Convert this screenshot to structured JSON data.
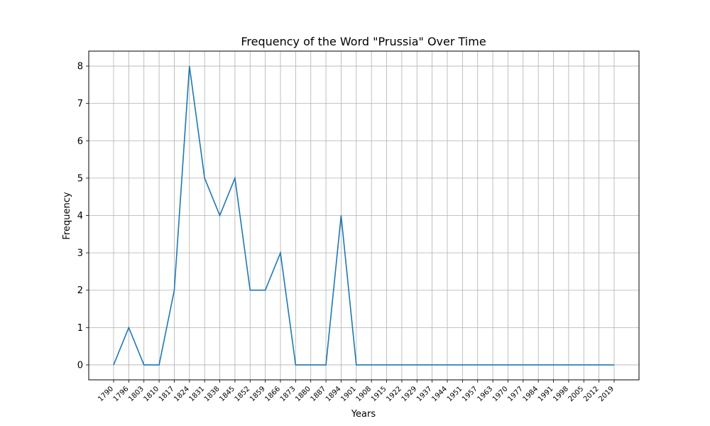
{
  "chart_data": {
    "type": "line",
    "title": "Frequency of the Word \"Prussia\" Over Time",
    "xlabel": "Years",
    "ylabel": "Frequency",
    "x": [
      "1790",
      "1796",
      "1803",
      "1810",
      "1817",
      "1824",
      "1831",
      "1838",
      "1845",
      "1852",
      "1859",
      "1866",
      "1873",
      "1880",
      "1887",
      "1894",
      "1901",
      "1908",
      "1915",
      "1922",
      "1929",
      "1937",
      "1944",
      "1951",
      "1957",
      "1963",
      "1970",
      "1977",
      "1984",
      "1991",
      "1998",
      "2005",
      "2012",
      "2019"
    ],
    "series": [
      {
        "values": [
          0,
          1,
          0,
          0,
          2,
          8,
          5,
          4,
          5,
          2,
          2,
          3,
          0,
          0,
          0,
          4,
          0,
          0,
          0,
          0,
          0,
          0,
          0,
          0,
          0,
          0,
          0,
          0,
          0,
          0,
          0,
          0,
          0,
          0
        ],
        "color": "#1f77b4"
      }
    ],
    "yticks": [
      "0",
      "1",
      "2",
      "3",
      "4",
      "5",
      "6",
      "7",
      "8"
    ],
    "ylim": [
      -0.4,
      8.4
    ],
    "grid": true,
    "legend": "none"
  }
}
